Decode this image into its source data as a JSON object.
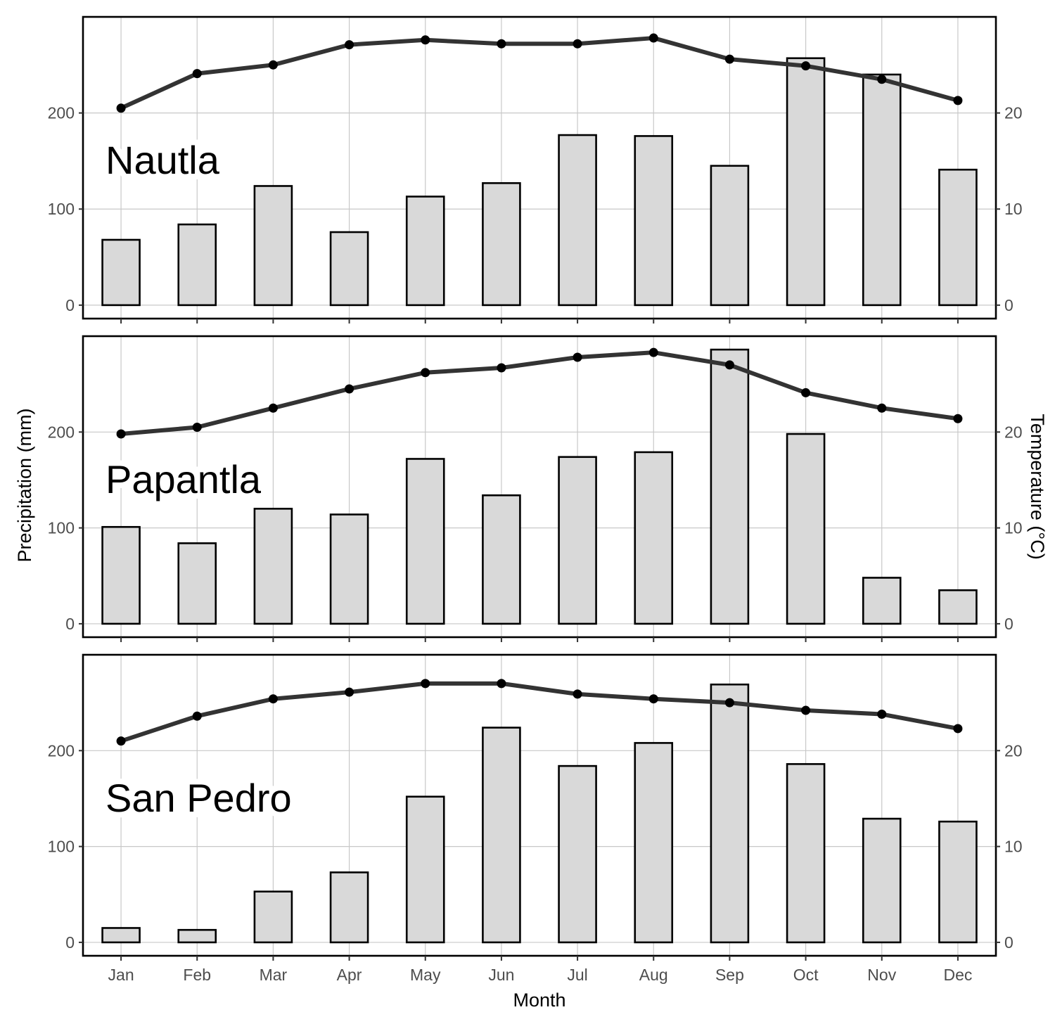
{
  "chart_data": {
    "type": "bar",
    "xlabel": "Month",
    "ylabel": "Precipitation (mm)",
    "y2label": "Temperature (°C)",
    "categories": [
      "Jan",
      "Feb",
      "Mar",
      "Apr",
      "May",
      "Jun",
      "Jul",
      "Aug",
      "Sep",
      "Oct",
      "Nov",
      "Dec"
    ],
    "ylim": [
      -14,
      300
    ],
    "yticks": [
      0,
      100,
      200
    ],
    "y2lim": [
      -1.4,
      30
    ],
    "y2ticks": [
      0,
      10,
      20
    ],
    "grid": true,
    "bars": "precipitation",
    "line": "temperature",
    "panels": [
      {
        "title": "Nautla",
        "precipitation": [
          68,
          84,
          124,
          76,
          113,
          127,
          177,
          176,
          145,
          257,
          240,
          141
        ],
        "temperature": [
          20.5,
          24.1,
          25.0,
          27.1,
          27.6,
          27.2,
          27.2,
          27.8,
          25.6,
          24.9,
          23.5,
          21.3
        ]
      },
      {
        "title": "Papantla",
        "precipitation": [
          101,
          84,
          120,
          114,
          172,
          134,
          174,
          179,
          286,
          198,
          48,
          35
        ],
        "temperature": [
          19.8,
          20.5,
          22.5,
          24.5,
          26.2,
          26.7,
          27.8,
          28.3,
          27.0,
          24.1,
          22.5,
          21.4
        ]
      },
      {
        "title": "San Pedro",
        "precipitation": [
          15,
          13,
          53,
          73,
          152,
          224,
          184,
          208,
          269,
          186,
          129,
          126
        ],
        "temperature": [
          21.0,
          23.6,
          25.4,
          26.1,
          27.0,
          27.0,
          25.9,
          25.4,
          25.0,
          24.2,
          23.8,
          22.3
        ]
      }
    ]
  }
}
